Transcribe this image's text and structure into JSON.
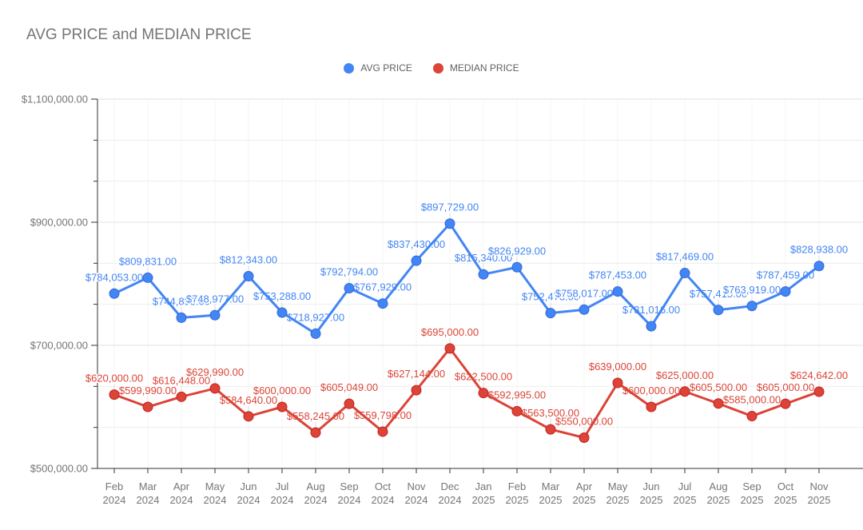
{
  "title": "AVG PRICE and MEDIAN PRICE",
  "legend": [
    {
      "label": "AVG PRICE",
      "color": "#4285F4"
    },
    {
      "label": "MEDIAN PRICE",
      "color": "#DB4437"
    }
  ],
  "chart_data": {
    "type": "line",
    "title": "AVG PRICE and MEDIAN PRICE",
    "categories": [
      "Feb 2024",
      "Mar 2024",
      "Apr 2024",
      "May 2024",
      "Jun 2024",
      "Jul 2024",
      "Aug 2024",
      "Sep 2024",
      "Oct 2024",
      "Nov 2024",
      "Dec 2024",
      "Jan 2025",
      "Feb 2025",
      "Mar 2025",
      "Apr 2025",
      "May 2025",
      "Jun 2025",
      "Jul 2025",
      "Aug 2025",
      "Sep 2025",
      "Oct 2025",
      "Nov 2025"
    ],
    "series": [
      {
        "name": "AVG PRICE",
        "color": "#4285F4",
        "point_stroke": "#3367D6",
        "values": [
          784053,
          809831,
          744895,
          748977,
          812343,
          753288,
          718927,
          792794,
          767929,
          837430,
          897729,
          815340,
          826929,
          752473,
          758017,
          787453,
          731016,
          817469,
          757415,
          763919,
          787459,
          828938
        ],
        "labels": [
          "$784,053.00",
          "$809,831.00",
          "$744,895.00",
          "$748,977.00",
          "$812,343.00",
          "$753,288.00",
          "$718,927.00",
          "$792,794.00",
          "$767,929.00",
          "$837,430.00",
          "$897,729.00",
          "$815,340.00",
          "$826,929.00",
          "$752,473.00",
          "$758,017.00",
          "$787,453.00",
          "$731,016.00",
          "$817,469.00",
          "$757,415.00",
          "$763,919.00",
          "$787,459.00",
          "$828,938.00"
        ]
      },
      {
        "name": "MEDIAN PRICE",
        "color": "#DB4437",
        "point_stroke": "#C5221F",
        "values": [
          620000,
          599990,
          616448,
          629990,
          584640,
          600000,
          558245,
          605049,
          559798,
          627144,
          695000,
          622500,
          592995,
          563500,
          550000,
          639000,
          600000,
          625000,
          605500,
          585000,
          605000,
          624642
        ],
        "labels": [
          "$620,000.00",
          "$599,990.00",
          "$616,448.00",
          "$629,990.00",
          "$584,640.00",
          "$600,000.00",
          "$558,245.00",
          "$605,049.00",
          "$559,798.00",
          "$627,144.00",
          "$695,000.00",
          "$622,500.00",
          "$592,995.00",
          "$563,500.00",
          "$550,000.00",
          "$639,000.00",
          "$600,000.00",
          "$625,000.00",
          "$605,500.00",
          "$585,000.00",
          "$605,000.00",
          "$624,642.00"
        ]
      }
    ],
    "ylim": [
      500000,
      1100000
    ],
    "y_major_ticks": [
      {
        "value": 1100000,
        "label": "$1,100,000.00"
      },
      {
        "value": 900000,
        "label": "$900,000.00"
      },
      {
        "value": 700000,
        "label": "$700,000.00"
      },
      {
        "value": 500000,
        "label": "$500,000.00"
      }
    ],
    "y_minor_divisions_per_major": 3,
    "grid": true,
    "legend_position": "top-center",
    "xlabel": "",
    "ylabel": ""
  }
}
